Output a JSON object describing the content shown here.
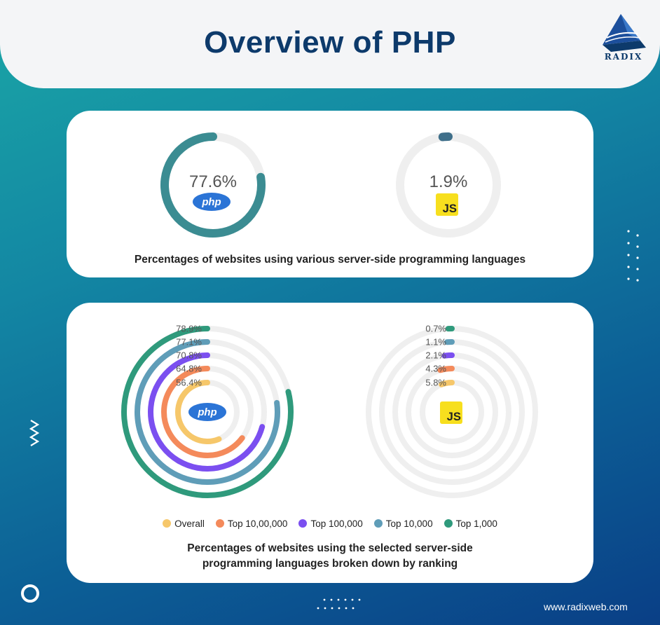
{
  "header": {
    "title": "Overview of PHP",
    "brand": "RADIX"
  },
  "colors": {
    "php_badge": "#2b74d6",
    "js_badge": "#f7df1e",
    "track": "#efefef",
    "overall": "#f6c76a",
    "top_10_00_000": "#f48a5b",
    "top_100_000": "#7b4ff0",
    "top_10_000": "#5f9db8",
    "top_1_000": "#2f9a7c",
    "donut_php": "#3b8c92",
    "donut_js": "#3f6f8a"
  },
  "icons": {
    "php": "php-logo-icon",
    "js": "js-logo-icon",
    "brand": "radix-pyramid-icon"
  },
  "overview": {
    "caption": "Percentages of websites using various server-side programming languages",
    "php": {
      "label": "77.6%",
      "badge": "php"
    },
    "js": {
      "label": "1.9%",
      "badge": "JS"
    }
  },
  "ranking": {
    "caption_line1": "Percentages of websites using the selected server-side",
    "caption_line2": "programming languages broken down by ranking",
    "php_badge": "php",
    "js_badge": "JS",
    "legend": [
      "Overall",
      "Top 10,00,000",
      "Top 100,000",
      "Top 10,000",
      "Top 1,000"
    ]
  },
  "footer": {
    "website": "www.radixweb.com"
  },
  "chart_data": [
    {
      "type": "pie",
      "categories": [
        "PHP",
        "JS"
      ],
      "values": [
        77.6,
        1.9
      ],
      "title": "Percentages of websites using various server-side programming languages"
    },
    {
      "type": "bar",
      "title": "Percentages of websites using the selected server-side programming languages broken down by ranking",
      "categories": [
        "Overall",
        "Top 10,00,000",
        "Top 100,000",
        "Top 10,000",
        "Top 1,000"
      ],
      "series": [
        {
          "name": "php",
          "values": [
            56.4,
            64.8,
            70.8,
            77.1,
            78.9
          ],
          "labels": [
            "56.4%",
            "64.8%",
            "70.8%",
            "77.1%",
            "78.9%"
          ]
        },
        {
          "name": "JS",
          "values": [
            5.8,
            4.3,
            2.1,
            1.1,
            0.7
          ],
          "labels": [
            "5.8%",
            "4.3%",
            "2.1%",
            "1.1%",
            "0.7%"
          ]
        }
      ],
      "ylim": [
        0,
        100
      ],
      "legend": "bottom"
    }
  ]
}
